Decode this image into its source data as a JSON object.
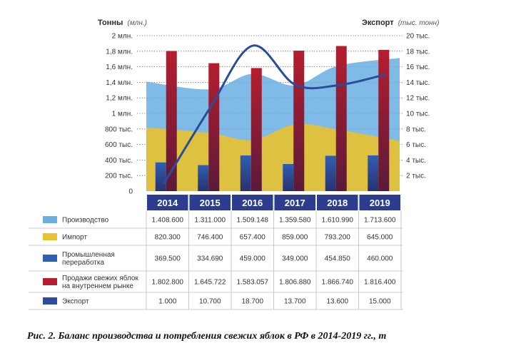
{
  "chart_data": {
    "type": "bar",
    "left_axis": {
      "title": "Тонны",
      "unit": "(млн.)",
      "range": [
        0,
        2000000
      ],
      "ticks": [
        "0",
        "200 тыс.",
        "400 тыс.",
        "600 тыс.",
        "800 тыс.",
        "1 млн.",
        "1,2 млн.",
        "1,4 млн.",
        "1,6 млн.",
        "1,8 млн.",
        "2 млн."
      ]
    },
    "right_axis": {
      "title": "Экспорт",
      "unit": "(тыс. тонн)",
      "range": [
        0,
        20000
      ],
      "ticks": [
        "",
        "2 тыс.",
        "4 тыс.",
        "6 тыс.",
        "8 тыс.",
        "10 тыс.",
        "12 тыс.",
        "14 тыс.",
        "16 тыс.",
        "18 тыс.",
        "20 тыс."
      ]
    },
    "categories": [
      "2014",
      "2015",
      "2016",
      "2017",
      "2018",
      "2019"
    ],
    "grid": "dotted horizontal",
    "series": [
      {
        "name": "Производство",
        "kind": "area",
        "color": "#6aaee2",
        "values": [
          1408600,
          1311000,
          1509148,
          1359580,
          1610990,
          1713600
        ],
        "labels": [
          "1.408.600",
          "1.311.000",
          "1.509.148",
          "1.359.580",
          "1.610.990",
          "1.713.600"
        ]
      },
      {
        "name": "Импорт",
        "kind": "area",
        "color": "#e9c22f",
        "values": [
          820300,
          746400,
          657400,
          859000,
          793200,
          645000
        ],
        "labels": [
          "820.300",
          "746.400",
          "657.400",
          "859.000",
          "793.200",
          "645.000"
        ]
      },
      {
        "name": "Промышленная переработка",
        "kind": "bar",
        "color": "#2f5fb3",
        "values": [
          369500,
          334690,
          459000,
          349000,
          454850,
          460000
        ],
        "labels": [
          "369.500",
          "334.690",
          "459.000",
          "349.000",
          "454.850",
          "460.000"
        ]
      },
      {
        "name": "Продажи свежих яблок на внутреннем рынке",
        "kind": "bar",
        "color": "#b51e2e",
        "values": [
          1802800,
          1645722,
          1583057,
          1806880,
          1866740,
          1816400
        ],
        "labels": [
          "1.802.800",
          "1.645.722",
          "1.583.057",
          "1.806.880",
          "1.866.740",
          "1.816.400"
        ]
      },
      {
        "name": "Экспорт",
        "kind": "line",
        "axis": "right",
        "color": "#2b4c9a",
        "values": [
          1000,
          10700,
          18700,
          13700,
          13600,
          15000
        ],
        "labels": [
          "1.000",
          "10.700",
          "18.700",
          "13.700",
          "13.600",
          "15.000"
        ]
      }
    ],
    "legend_names": [
      "Производство",
      "Импорт",
      "Промышленная переработка",
      "Продажи свежих яблок на внутреннем рынке",
      "Экспорт"
    ],
    "legend_lines": [
      [
        "Производство"
      ],
      [
        "Импорт"
      ],
      [
        "Промышленная",
        "переработка"
      ],
      [
        "Продажи свежих яблок",
        "на внутреннем рынке"
      ],
      [
        "Экспорт"
      ]
    ],
    "year_header_color": "#2c3d8f"
  },
  "caption": "Рис. 2. Баланс производства и потребления свежих яблок в РФ в 2014-2019 гг., т"
}
